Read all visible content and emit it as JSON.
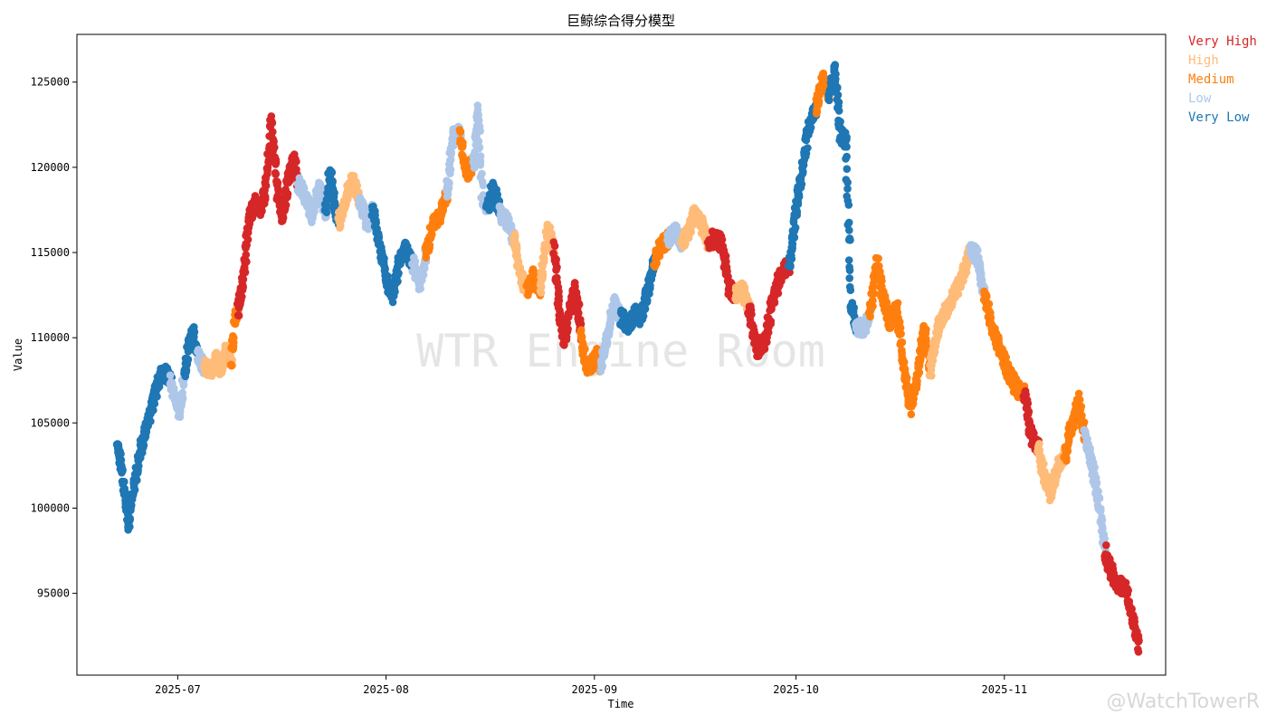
{
  "chart_data": {
    "type": "scatter",
    "title": "巨鲸综合得分模型",
    "xlabel": "Time",
    "ylabel": "Value",
    "x_ticks": [
      "2025-07",
      "2025-08",
      "2025-09",
      "2025-10",
      "2025-11"
    ],
    "y_ticks": [
      95000,
      100000,
      105000,
      110000,
      115000,
      120000,
      125000
    ],
    "xlim": [
      "2025-06-16",
      "2025-11-25"
    ],
    "ylim": [
      90200,
      127800
    ],
    "grid": false,
    "legend_position": "outside-top-right",
    "series": [
      {
        "name": "Very High",
        "color": "#d62728"
      },
      {
        "name": "High",
        "color": "#ffbb78"
      },
      {
        "name": "Medium",
        "color": "#ff7f0e"
      },
      {
        "name": "Low",
        "color": "#aec7e8"
      },
      {
        "name": "Very Low",
        "color": "#1f77b4"
      }
    ],
    "segments": [
      {
        "start": "2025-06-22",
        "end": "2025-06-30",
        "cat": "Very Low",
        "values": [
          103600,
          102000,
          99000,
          101200,
          102800,
          104300,
          105500,
          106700,
          107800,
          107900,
          107400
        ]
      },
      {
        "start": "2025-06-30",
        "end": "2025-07-02",
        "cat": "Low",
        "values": [
          107400,
          106400,
          105500,
          107800
        ]
      },
      {
        "start": "2025-07-02",
        "end": "2025-07-04",
        "cat": "Very Low",
        "values": [
          107800,
          109500,
          110300,
          109100
        ]
      },
      {
        "start": "2025-07-04",
        "end": "2025-07-05",
        "cat": "Low",
        "values": [
          109100,
          108300
        ]
      },
      {
        "start": "2025-07-05",
        "end": "2025-07-09",
        "cat": "High",
        "values": [
          108300,
          108000,
          108700,
          108200,
          109300,
          108800
        ]
      },
      {
        "start": "2025-07-09",
        "end": "2025-07-10",
        "cat": "Medium",
        "values": [
          108800,
          111000,
          111600
        ]
      },
      {
        "start": "2025-07-10",
        "end": "2025-07-19",
        "cat": "Very High",
        "values": [
          111600,
          113700,
          117000,
          118000,
          117500,
          118600,
          122600,
          119000,
          117000,
          119000,
          120500,
          119000
        ]
      },
      {
        "start": "2025-07-19",
        "end": "2025-07-23",
        "cat": "Low",
        "values": [
          119000,
          118200,
          117200,
          118800,
          117400
        ]
      },
      {
        "start": "2025-07-23",
        "end": "2025-07-25",
        "cat": "Very Low",
        "values": [
          117400,
          119800,
          117800,
          116800
        ]
      },
      {
        "start": "2025-07-25",
        "end": "2025-07-28",
        "cat": "High",
        "values": [
          116800,
          118200,
          119300,
          118000
        ]
      },
      {
        "start": "2025-07-28",
        "end": "2025-07-30",
        "cat": "Low",
        "values": [
          118000,
          117500,
          116500,
          117500
        ]
      },
      {
        "start": "2025-07-30",
        "end": "2025-08-05",
        "cat": "Very Low",
        "values": [
          117500,
          115500,
          113400,
          112400,
          114600,
          115200,
          114300
        ]
      },
      {
        "start": "2025-08-05",
        "end": "2025-08-07",
        "cat": "Low",
        "values": [
          114300,
          113100,
          114900
        ]
      },
      {
        "start": "2025-08-07",
        "end": "2025-08-10",
        "cat": "Medium",
        "values": [
          114900,
          116800,
          117000,
          118500
        ]
      },
      {
        "start": "2025-08-10",
        "end": "2025-08-12",
        "cat": "Low",
        "values": [
          118500,
          121800,
          122000
        ]
      },
      {
        "start": "2025-08-12",
        "end": "2025-08-14",
        "cat": "Medium",
        "values": [
          122000,
          119600,
          120300
        ]
      },
      {
        "start": "2025-08-14",
        "end": "2025-08-16",
        "cat": "Low",
        "values": [
          120300,
          123600,
          118300,
          117600
        ]
      },
      {
        "start": "2025-08-16",
        "end": "2025-08-18",
        "cat": "Very Low",
        "values": [
          117600,
          118800,
          117300
        ]
      },
      {
        "start": "2025-08-18",
        "end": "2025-08-20",
        "cat": "Low",
        "values": [
          117300,
          116800,
          115800
        ]
      },
      {
        "start": "2025-08-20",
        "end": "2025-08-22",
        "cat": "High",
        "values": [
          115800,
          114500,
          113200,
          112900
        ]
      },
      {
        "start": "2025-08-22",
        "end": "2025-08-24",
        "cat": "Medium",
        "values": [
          112900,
          113600,
          112800
        ]
      },
      {
        "start": "2025-08-24",
        "end": "2025-08-26",
        "cat": "High",
        "values": [
          112800,
          116500,
          115200
        ]
      },
      {
        "start": "2025-08-26",
        "end": "2025-08-30",
        "cat": "Very High",
        "values": [
          115200,
          111500,
          109800,
          111700,
          112800,
          110300
        ]
      },
      {
        "start": "2025-08-30",
        "end": "2025-09-02",
        "cat": "Medium",
        "values": [
          110300,
          108400,
          108300,
          109100,
          108400
        ]
      },
      {
        "start": "2025-09-02",
        "end": "2025-09-05",
        "cat": "Low",
        "values": [
          108400,
          110200,
          112000,
          111200
        ]
      },
      {
        "start": "2025-09-05",
        "end": "2025-09-10",
        "cat": "Very Low",
        "values": [
          111200,
          110700,
          111400,
          111200,
          113000,
          114500
        ]
      },
      {
        "start": "2025-09-10",
        "end": "2025-09-12",
        "cat": "Medium",
        "values": [
          114500,
          115500,
          115800
        ]
      },
      {
        "start": "2025-09-12",
        "end": "2025-09-14",
        "cat": "Low",
        "values": [
          115800,
          116300,
          115500
        ]
      },
      {
        "start": "2025-09-14",
        "end": "2025-09-18",
        "cat": "High",
        "values": [
          115500,
          116300,
          117300,
          116600,
          115600
        ]
      },
      {
        "start": "2025-09-18",
        "end": "2025-09-22",
        "cat": "Very High",
        "values": [
          115600,
          115900,
          115500,
          113000,
          112500
        ]
      },
      {
        "start": "2025-09-22",
        "end": "2025-09-24",
        "cat": "High",
        "values": [
          112500,
          112900,
          111600
        ]
      },
      {
        "start": "2025-09-24",
        "end": "2025-09-30",
        "cat": "Very High",
        "values": [
          111600,
          109300,
          109800,
          112300,
          113800,
          114300
        ]
      },
      {
        "start": "2025-09-30",
        "end": "2025-10-04",
        "cat": "Very Low",
        "values": [
          114300,
          117500,
          120000,
          122600,
          123500
        ]
      },
      {
        "start": "2025-10-04",
        "end": "2025-10-06",
        "cat": "Medium",
        "values": [
          123500,
          125200,
          124300
        ]
      },
      {
        "start": "2025-10-06",
        "end": "2025-10-10",
        "cat": "Very Low",
        "values": [
          124300,
          125800,
          122000,
          121500,
          112000,
          110700
        ]
      },
      {
        "start": "2025-10-10",
        "end": "2025-10-12",
        "cat": "Low",
        "values": [
          110700,
          110500,
          111200
        ]
      },
      {
        "start": "2025-10-12",
        "end": "2025-10-16",
        "cat": "Medium",
        "values": [
          111200,
          114500,
          112300,
          110800,
          111800
        ]
      },
      {
        "start": "2025-10-16",
        "end": "2025-10-21",
        "cat": "Medium",
        "values": [
          111800,
          108300,
          105800,
          107500,
          110500,
          108200
        ]
      },
      {
        "start": "2025-10-21",
        "end": "2025-10-27",
        "cat": "High",
        "values": [
          108200,
          110800,
          111600,
          112500,
          113600,
          115200
        ]
      },
      {
        "start": "2025-10-27",
        "end": "2025-10-29",
        "cat": "Low",
        "values": [
          115200,
          114700,
          112600
        ]
      },
      {
        "start": "2025-10-29",
        "end": "2025-11-04",
        "cat": "Medium",
        "values": [
          112600,
          110500,
          109300,
          108000,
          107000,
          106800
        ]
      },
      {
        "start": "2025-11-04",
        "end": "2025-11-06",
        "cat": "Very High",
        "values": [
          106800,
          104200,
          103600
        ]
      },
      {
        "start": "2025-11-06",
        "end": "2025-11-10",
        "cat": "High",
        "values": [
          103600,
          101800,
          100800,
          102500,
          103000
        ]
      },
      {
        "start": "2025-11-10",
        "end": "2025-11-13",
        "cat": "Medium",
        "values": [
          103000,
          104900,
          106300,
          104200
        ]
      },
      {
        "start": "2025-11-13",
        "end": "2025-11-16",
        "cat": "Low",
        "values": [
          104200,
          102600,
          100500,
          97500
        ]
      },
      {
        "start": "2025-11-16",
        "end": "2025-11-21",
        "cat": "Very High",
        "values": [
          97500,
          96200,
          95500,
          95300,
          93600,
          92000
        ]
      }
    ]
  },
  "watermark": "WTR Engine Room",
  "credit": "@WatchTowerR"
}
